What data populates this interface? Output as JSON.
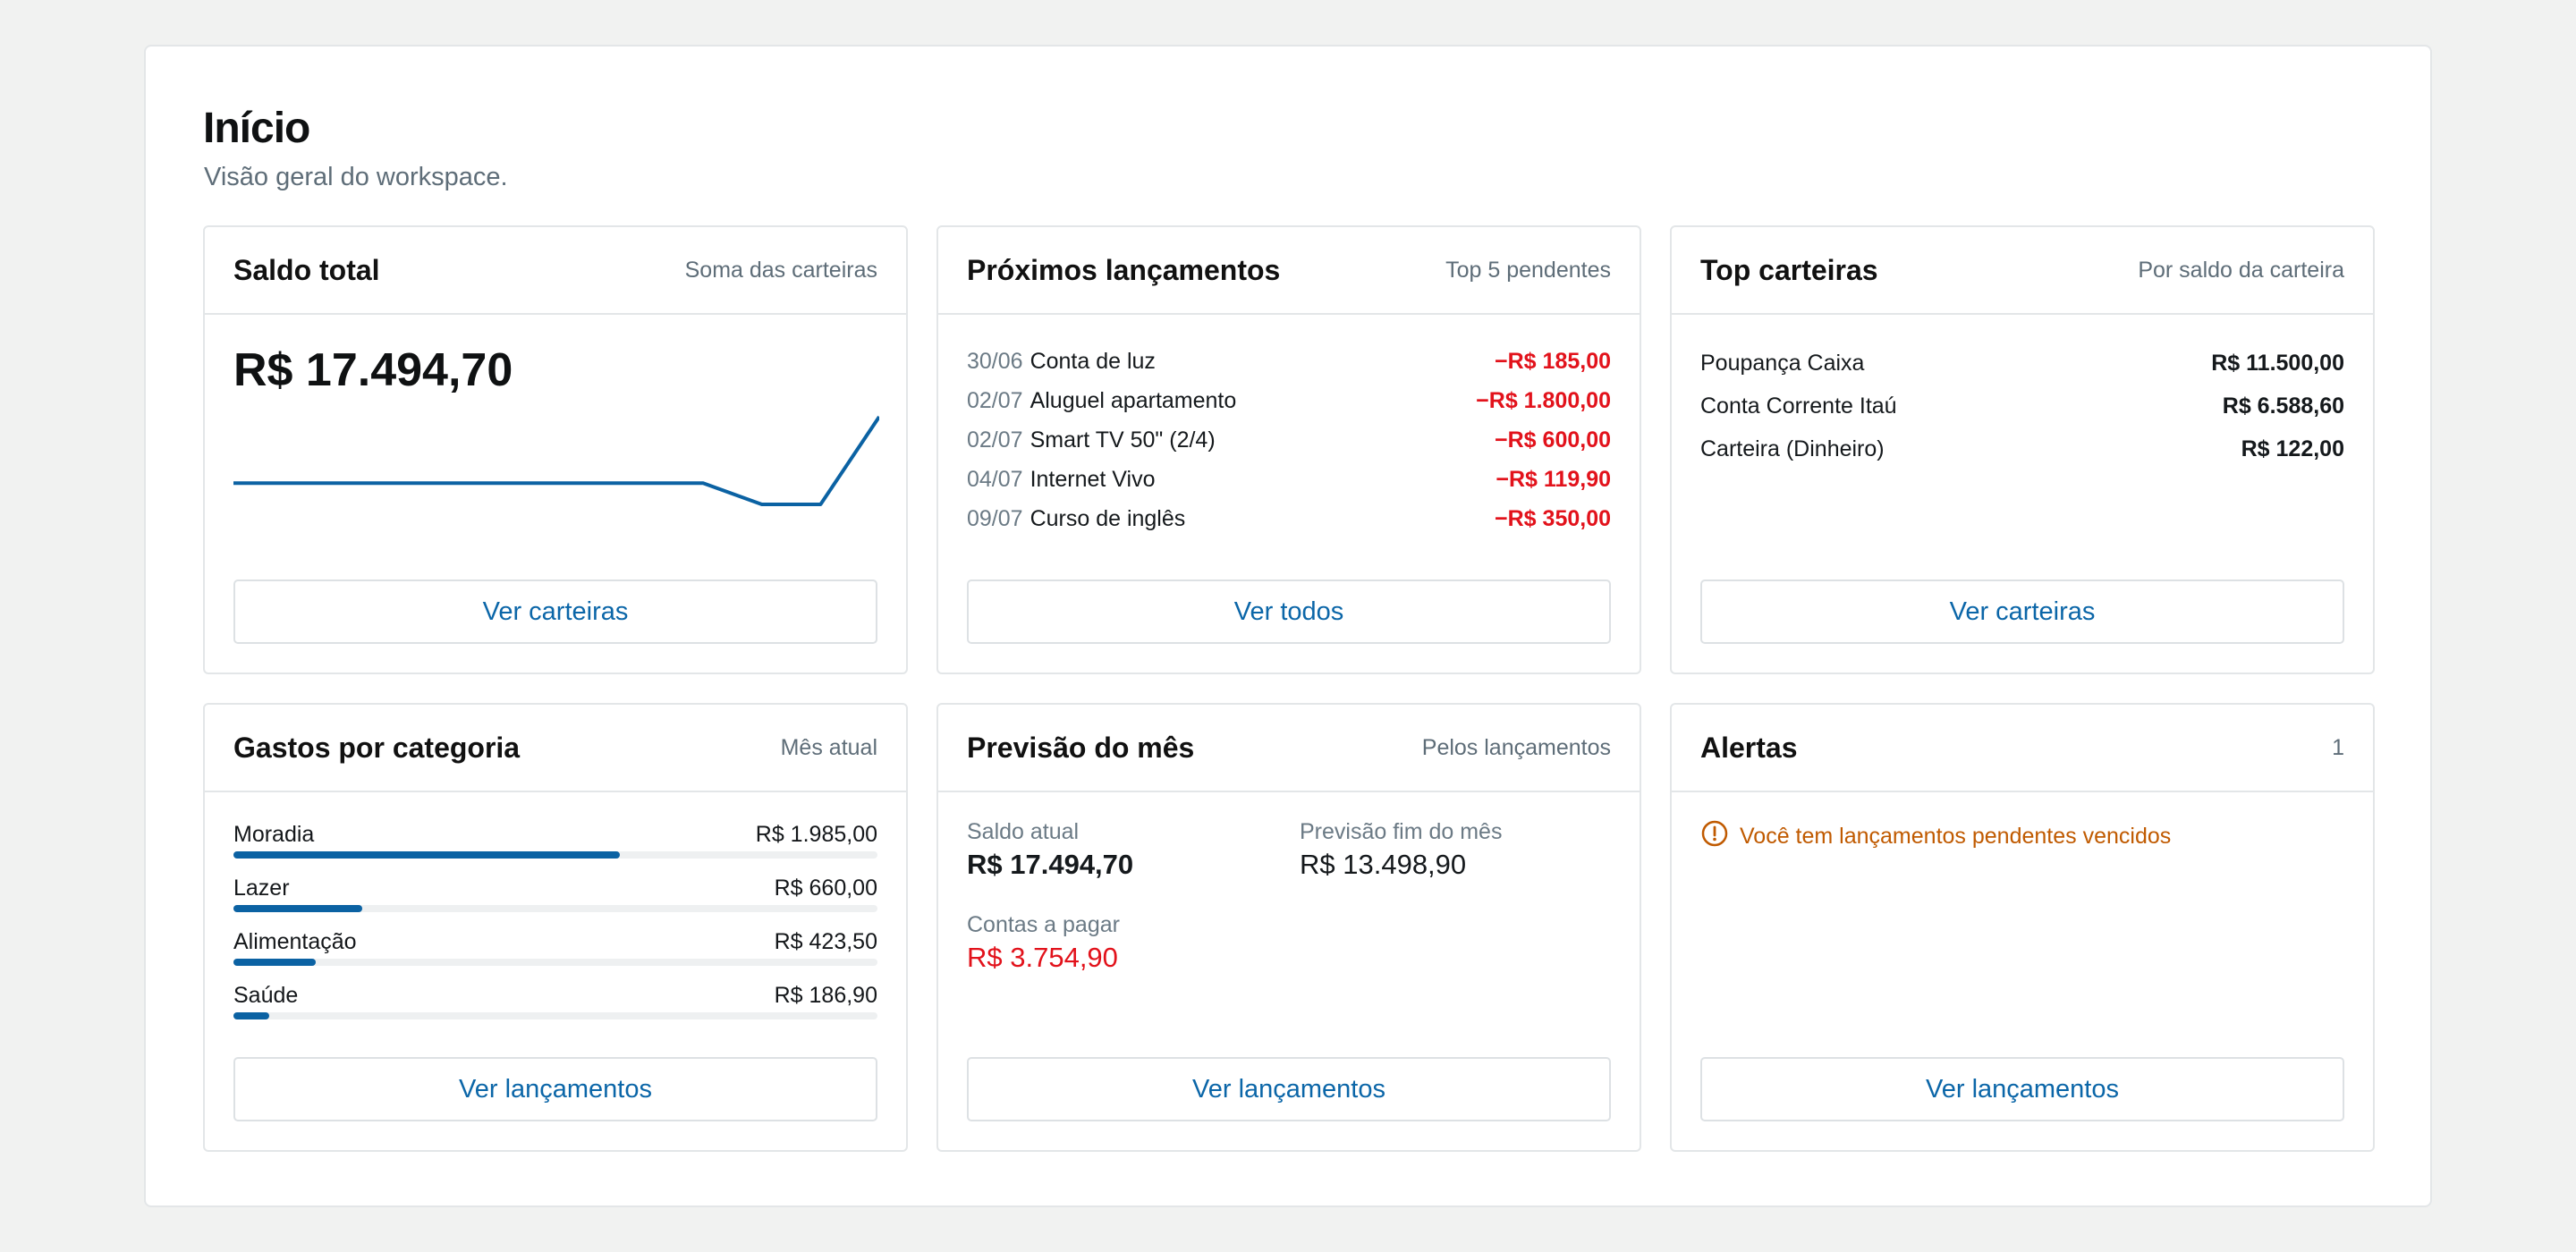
{
  "page": {
    "title": "Início",
    "subtitle": "Visão geral do workspace."
  },
  "colors": {
    "accent": "#0b66a8",
    "negative": "#e2121b",
    "warning": "#c05a00",
    "bar": "#0b62a3"
  },
  "balance_card": {
    "title": "Saldo total",
    "meta": "Soma das carteiras",
    "value": "R$ 17.494,70",
    "button": "Ver carteiras",
    "sparkline": [
      72,
      72,
      72,
      72,
      72,
      72,
      72,
      72,
      72,
      63,
      63,
      100
    ]
  },
  "upcoming_card": {
    "title": "Próximos lançamentos",
    "meta": "Top 5 pendentes",
    "button": "Ver todos",
    "items": [
      {
        "date": "30/06",
        "desc": "Conta de luz",
        "amount": "−R$ 185,00"
      },
      {
        "date": "02/07",
        "desc": "Aluguel apartamento",
        "amount": "−R$ 1.800,00"
      },
      {
        "date": "02/07",
        "desc": "Smart TV 50\" (2/4)",
        "amount": "−R$ 600,00"
      },
      {
        "date": "04/07",
        "desc": "Internet Vivo",
        "amount": "−R$ 119,90"
      },
      {
        "date": "09/07",
        "desc": "Curso de inglês",
        "amount": "−R$ 350,00"
      }
    ]
  },
  "wallets_card": {
    "title": "Top carteiras",
    "meta": "Por saldo da carteira",
    "button": "Ver carteiras",
    "items": [
      {
        "name": "Poupança Caixa",
        "amount": "R$ 11.500,00"
      },
      {
        "name": "Conta Corrente Itaú",
        "amount": "R$ 6.588,60"
      },
      {
        "name": "Carteira (Dinheiro)",
        "amount": "R$ 122,00"
      }
    ]
  },
  "categories_card": {
    "title": "Gastos por categoria",
    "meta": "Mês atual",
    "button": "Ver lançamentos",
    "items": [
      {
        "name": "Moradia",
        "amount": "R$ 1.985,00",
        "fraction": 0.6
      },
      {
        "name": "Lazer",
        "amount": "R$ 660,00",
        "fraction": 0.2
      },
      {
        "name": "Alimentação",
        "amount": "R$ 423,50",
        "fraction": 0.128
      },
      {
        "name": "Saúde",
        "amount": "R$ 186,90",
        "fraction": 0.056
      }
    ]
  },
  "forecast_card": {
    "title": "Previsão do mês",
    "meta": "Pelos lançamentos",
    "button": "Ver lançamentos",
    "current_label": "Saldo atual",
    "current_value": "R$ 17.494,70",
    "end_label": "Previsão fim do mês",
    "end_value": "R$ 13.498,90",
    "payable_label": "Contas a pagar",
    "payable_value": "R$ 3.754,90"
  },
  "alerts_card": {
    "title": "Alertas",
    "meta": "1",
    "button": "Ver lançamentos",
    "icon": "alert-circle-icon",
    "message": "Você tem lançamentos pendentes vencidos"
  }
}
